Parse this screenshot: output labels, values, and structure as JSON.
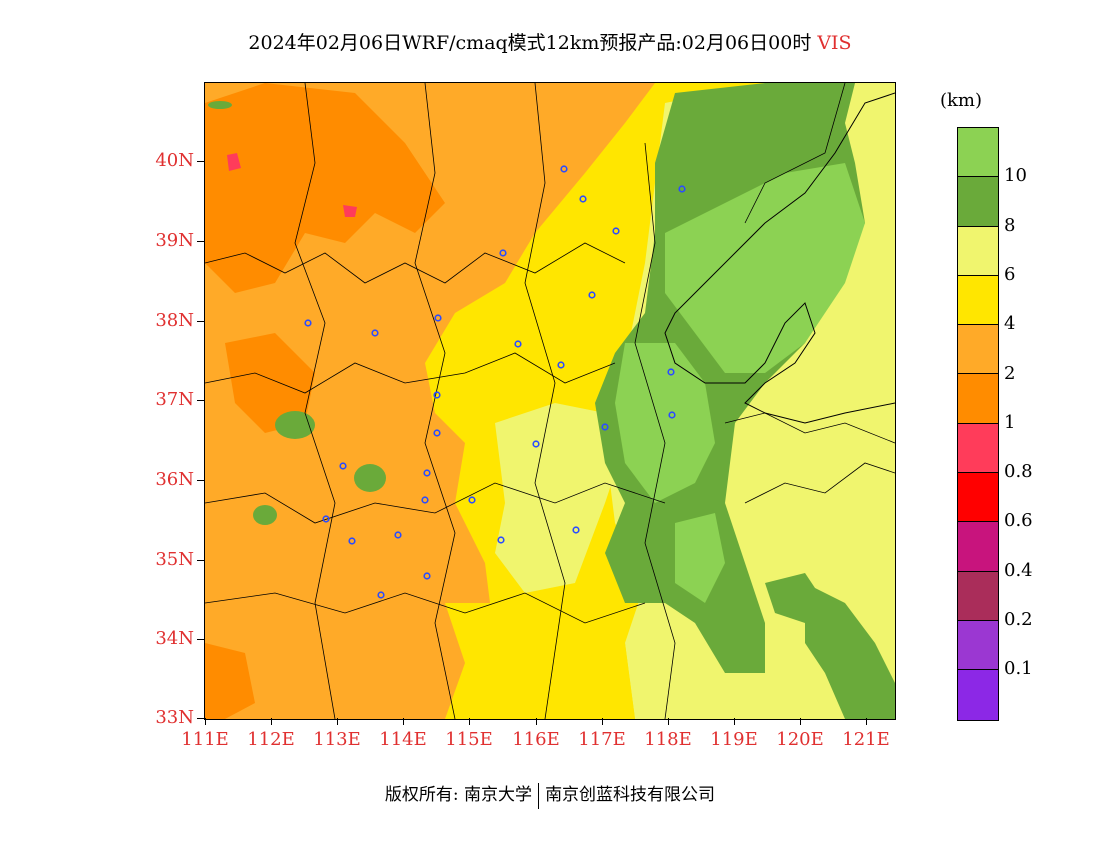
{
  "title": {
    "text": "2024年02月06日WRF/cmaq模式12km预报产品:02月06日00时",
    "variable": "VIS"
  },
  "map": {
    "lat_ticks": [
      "40N",
      "39N",
      "38N",
      "37N",
      "36N",
      "35N",
      "34N",
      "33N"
    ],
    "lon_ticks": [
      "111E",
      "112E",
      "113E",
      "114E",
      "115E",
      "116E",
      "117E",
      "118E",
      "119E",
      "120E",
      "121E"
    ],
    "lat_range": [
      33,
      41
    ],
    "lon_range": [
      111,
      121.4
    ]
  },
  "colorbar": {
    "units": "(km)",
    "labels": [
      "10",
      "8",
      "6",
      "4",
      "2",
      "1",
      "0.8",
      "0.6",
      "0.4",
      "0.2",
      "0.1"
    ],
    "colors": [
      "#8cd253",
      "#6aaa3a",
      "#f0f56e",
      "#ffe600",
      "#ffaa28",
      "#ff8c00",
      "#ff3c5a",
      "#ff0000",
      "#c8147d",
      "#aa2d5a",
      "#9b37d2",
      "#8c28e6"
    ]
  },
  "footer": {
    "left": "版权所有: 南京大学",
    "right": "南京创蓝科技有限公司"
  }
}
